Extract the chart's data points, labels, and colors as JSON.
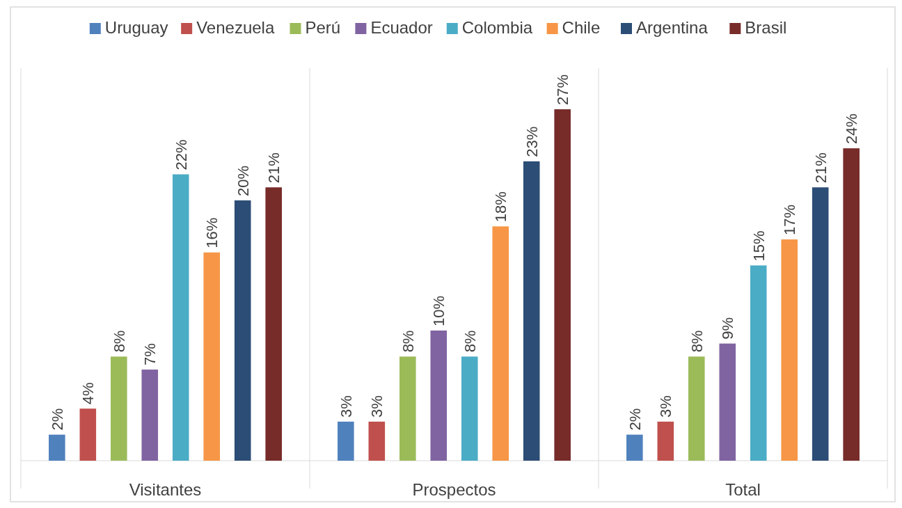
{
  "chart_data": {
    "type": "bar",
    "categories": [
      "Visitantes",
      "Prospectos",
      "Total"
    ],
    "legend": "top",
    "series": [
      {
        "name": "Uruguay",
        "color": "#4f81bd",
        "values": [
          2,
          3,
          2
        ],
        "value_labels": [
          "2%",
          "3%",
          "2%"
        ]
      },
      {
        "name": "Venezuela",
        "color": "#c0504d",
        "values": [
          4,
          3,
          3
        ],
        "value_labels": [
          "4%",
          "3%",
          "3%"
        ]
      },
      {
        "name": "Perú",
        "color": "#9bbb59",
        "values": [
          8,
          8,
          8
        ],
        "value_labels": [
          "8%",
          "8%",
          "8%"
        ]
      },
      {
        "name": "Ecuador",
        "color": "#8064a2",
        "values": [
          7,
          10,
          9
        ],
        "value_labels": [
          "7%",
          "10%",
          "9%"
        ]
      },
      {
        "name": "Colombia",
        "color": "#4bacc6",
        "values": [
          22,
          8,
          15
        ],
        "value_labels": [
          "22%",
          "8%",
          "15%"
        ]
      },
      {
        "name": "Chile",
        "color": "#f79646",
        "values": [
          16,
          18,
          17
        ],
        "value_labels": [
          "16%",
          "18%",
          "17%"
        ]
      },
      {
        "name": "Argentina",
        "color": "#2c4d75",
        "values": [
          20,
          23,
          21
        ],
        "value_labels": [
          "20%",
          "23%",
          "21%"
        ]
      },
      {
        "name": "Brasil",
        "color": "#772c2a",
        "values": [
          21,
          27,
          24
        ],
        "value_labels": [
          "21%",
          "27%",
          "24%"
        ]
      }
    ]
  }
}
